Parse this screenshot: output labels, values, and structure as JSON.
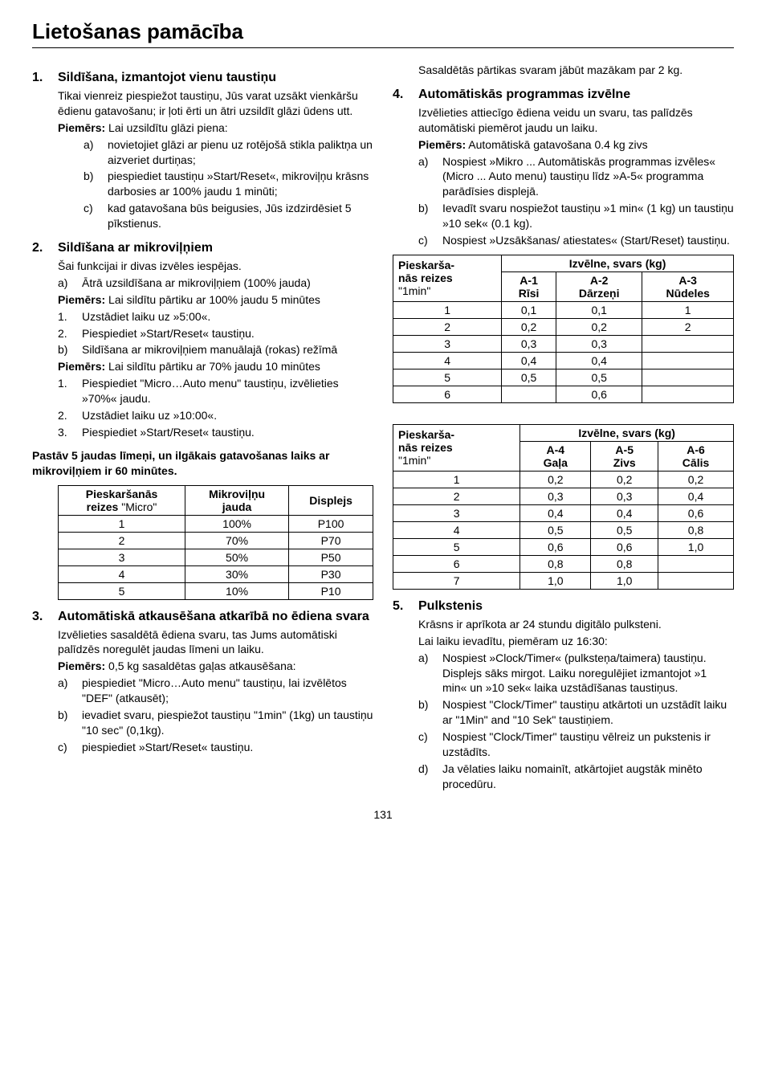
{
  "title": "Lietošanas pamācība",
  "page_num": "131",
  "s1": {
    "num": "1.",
    "title": "Sildīšana, izmantojot vienu taustiņu",
    "p1": "Tikai vienreiz piespiežot taustiņu, Jūs varat uzsākt vienkāršu ēdienu gatavošanu; ir ļoti ērti un ātri uzsildīt glāzi ūdens utt.",
    "p2_b": "Piemērs:",
    "p2": " Lai uzsildītu glāzi piena:",
    "a": {
      "lab": "a)",
      "txt": "novietojiet glāzi ar pienu uz rotējošā stikla paliktņa un aizveriet durtiņas;"
    },
    "b": {
      "lab": "b)",
      "txt": "piespiediet taustiņu »Start/Reset«, mikroviļņu krāsns darbosies ar 100% jaudu 1 minūti;"
    },
    "c": {
      "lab": "c)",
      "txt": "kad gatavošana būs beigusies, Jūs izdzirdēsiet 5 pīkstienus."
    }
  },
  "s2": {
    "num": "2.",
    "title": "Sildīšana ar mikroviļņiem",
    "p1": "Šai funkcijai ir divas izvēles iespējas.",
    "a": {
      "lab": "a)",
      "txt": "Ātrā uzsildīšana ar mikroviļņiem (100% jauda)"
    },
    "p2_b": "Piemērs:",
    "p2": " Lai sildītu pārtiku ar 100% jaudu 5 minūtes",
    "n1": {
      "lab": "1.",
      "txt": "Uzstādiet laiku uz »5:00«."
    },
    "n2": {
      "lab": "2.",
      "txt": "Piespiediet »Start/Reset« taustiņu."
    },
    "b": {
      "lab": "b)",
      "txt": "Sildīšana ar mikroviļņiem manuālajā (rokas) režīmā"
    },
    "p3_b": "Piemērs:",
    "p3": " Lai sildītu pārtiku ar 70% jaudu 10 minūtes",
    "m1": {
      "lab": "1.",
      "txt": "Piespiediet \"Micro…Auto menu\" taustiņu, izvēlieties »70%« jaudu."
    },
    "m2": {
      "lab": "2.",
      "txt": "Uzstādiet laiku uz »10:00«."
    },
    "m3": {
      "lab": "3.",
      "txt": "Piespiediet »Start/Reset« taustiņu."
    },
    "note": "Pastāv 5 jaudas līmeņi, un ilgākais gatavošanas laiks ar mikroviļņiem ir 60 minūtes.",
    "t1": {
      "h1a": "Pieskaršanās",
      "h1b": "reizes",
      "h1c": " \"Micro\"",
      "h2a": "Mikroviļņu",
      "h2b": "jauda",
      "h3": "Displejs",
      "rows": [
        [
          "1",
          "100%",
          "P100"
        ],
        [
          "2",
          "70%",
          "P70"
        ],
        [
          "3",
          "50%",
          "P50"
        ],
        [
          "4",
          "30%",
          "P30"
        ],
        [
          "5",
          "10%",
          "P10"
        ]
      ]
    }
  },
  "s3": {
    "num": "3.",
    "title": "Automātiskā atkausēšana atkarībā no ēdiena svara",
    "p1": "Izvēlieties sasaldētā ēdiena svaru, tas Jums automātiski palīdzēs noregulēt jaudas līmeni un laiku.",
    "p2_b": "Piemērs:",
    "p2": " 0,5 kg sasaldētas gaļas atkausēšana:",
    "a": {
      "lab": "a)",
      "txt": "piespiediet \"Micro…Auto menu\" taustiņu, lai izvēlētos \"DEF\" (atkausēt);"
    },
    "b": {
      "lab": "b)",
      "txt": "ievadiet svaru, piespiežot taustiņu \"1min\" (1kg) un taustiņu \"10 sec\" (0,1kg)."
    },
    "c": {
      "lab": "c)",
      "txt": "piespiediet »Start/Reset« taustiņu."
    },
    "p3": "Sasaldētās pārtikas svaram jābūt mazākam par 2 kg."
  },
  "s4": {
    "num": "4.",
    "title": "Automātiskās programmas izvēlne",
    "p1": "Izvēlieties attiecīgo ēdiena veidu un svaru, tas palīdzēs automātiski piemērot jaudu un laiku.",
    "p2_b": "Piemērs:",
    "p2": " Automātiskā gatavošana 0.4 kg zivs",
    "a": {
      "lab": "a)",
      "txt": "Nospiest »Mikro ... Automātiskās programmas izvēles« (Micro ... Auto menu) taustiņu līdz »A-5« programma parādīsies displejā."
    },
    "b": {
      "lab": "b)",
      "txt": "Ievadīt svaru nospiežot taustiņu »1 min« (1 kg) un taustiņu »10 sek« (0.1 kg)."
    },
    "c": {
      "lab": "c)",
      "txt": "Nospiest »Uzsākšanas/ atiestates« (Start/Reset) taustiņu."
    },
    "t2": {
      "h0a": "Pieskarša-",
      "h0b": "nās reizes",
      "h0c": "\"1min\"",
      "hh": "Izvēlne, svars (kg)",
      "h1a": "A-1",
      "h1b": "Rīsi",
      "h2a": "A-2",
      "h2b": "Dārzeņi",
      "h3a": "A-3",
      "h3b": "Nūdeles",
      "rows": [
        [
          "1",
          "0,1",
          "0,1",
          "1"
        ],
        [
          "2",
          "0,2",
          "0,2",
          "2"
        ],
        [
          "3",
          "0,3",
          "0,3",
          ""
        ],
        [
          "4",
          "0,4",
          "0,4",
          ""
        ],
        [
          "5",
          "0,5",
          "0,5",
          ""
        ],
        [
          "6",
          "",
          "0,6",
          ""
        ]
      ]
    },
    "t3": {
      "h0a": "Pieskarša-",
      "h0b": "nās reizes",
      "h0c": "\"1min\"",
      "hh": "Izvēlne, svars (kg)",
      "h1a": "A-4",
      "h1b": "Gaļa",
      "h2a": "A-5",
      "h2b": "Zivs",
      "h3a": "A-6",
      "h3b": "Cālis",
      "rows": [
        [
          "1",
          "0,2",
          "0,2",
          "0,2"
        ],
        [
          "2",
          "0,3",
          "0,3",
          "0,4"
        ],
        [
          "3",
          "0,4",
          "0,4",
          "0,6"
        ],
        [
          "4",
          "0,5",
          "0,5",
          "0,8"
        ],
        [
          "5",
          "0,6",
          "0,6",
          "1,0"
        ],
        [
          "6",
          "0,8",
          "0,8",
          ""
        ],
        [
          "7",
          "1,0",
          "1,0",
          ""
        ]
      ]
    }
  },
  "s5": {
    "num": "5.",
    "title": "Pulkstenis",
    "p1": "Krāsns ir aprīkota ar 24 stundu digitālo pulksteni.",
    "p2": "Lai laiku ievadītu, piemēram uz 16:30:",
    "a": {
      "lab": "a)",
      "txt": "Nospiest »Clock/Timer« (pulksteņa/taimera) taustiņu. Displejs sāks mirgot. Laiku noregulējiet izmantojot »1 min« un »10 sek« laika uzstādīšanas taustiņus."
    },
    "b": {
      "lab": "b)",
      "txt": "Nospiest \"Clock/Timer\" taustiņu atkārtoti un uzstādīt laiku ar \"1Min\" and \"10 Sek\" taustiņiem."
    },
    "c": {
      "lab": "c)",
      "txt": "Nospiest \"Clock/Timer\" taustiņu vēlreiz un pukstenis ir uzstādīts."
    },
    "d": {
      "lab": "d)",
      "txt": "Ja vēlaties laiku nomainīt, atkārtojiet augstāk minēto procedūru."
    }
  }
}
